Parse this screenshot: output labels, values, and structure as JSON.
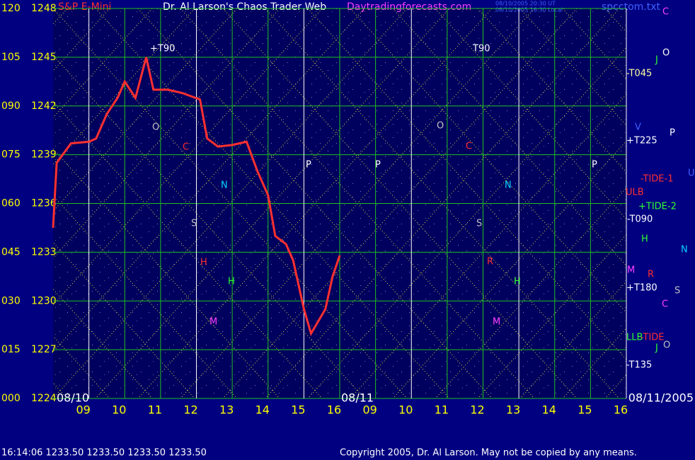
{
  "chart_data": {
    "type": "line",
    "title": "Dr. Al Larson's Chaos Trader Web",
    "subtitle": "Daytradingforecasts.com",
    "stamp": [
      "08/10/2005 20:30 UT",
      "08/10/2005 16:30 Local"
    ],
    "file": "spcctom.txt",
    "xlim": [
      0,
      16
    ],
    "xticks": [
      {
        "value": 1,
        "label": "09"
      },
      {
        "value": 2,
        "label": "10"
      },
      {
        "value": 3,
        "label": "11"
      },
      {
        "value": 4,
        "label": "12"
      },
      {
        "value": 5,
        "label": "13"
      },
      {
        "value": 6,
        "label": "14"
      },
      {
        "value": 7,
        "label": "15"
      },
      {
        "value": 8,
        "label": "16"
      },
      {
        "value": 9,
        "label": "09"
      },
      {
        "value": 10,
        "label": "10"
      },
      {
        "value": 11,
        "label": "11"
      },
      {
        "value": 12,
        "label": "12"
      },
      {
        "value": 13,
        "label": "13"
      },
      {
        "value": 14,
        "label": "14"
      },
      {
        "value": 15,
        "label": "15"
      },
      {
        "value": 16,
        "label": "16"
      }
    ],
    "date_labels": [
      {
        "value": 0,
        "label": "08/10"
      },
      {
        "value": 8,
        "label": "08/11"
      },
      {
        "value": 16,
        "label": "08/11/2005"
      }
    ],
    "ylim": [
      1224,
      1248
    ],
    "yticks": [
      1224,
      1227,
      1230,
      1233,
      1236,
      1239,
      1242,
      1245,
      1248
    ],
    "y2lim": [
      0,
      120
    ],
    "y2ticks": [
      {
        "value": 0,
        "label": "000"
      },
      {
        "value": 15,
        "label": "015"
      },
      {
        "value": 30,
        "label": "030"
      },
      {
        "value": 45,
        "label": "045"
      },
      {
        "value": 60,
        "label": "060"
      },
      {
        "value": 75,
        "label": "075"
      },
      {
        "value": 90,
        "label": "090"
      },
      105,
      120
    ],
    "grid": true,
    "series": [
      {
        "name": "S&P E-Mini",
        "color": "#ff3030",
        "x": [
          0,
          0.1,
          0.5,
          1.0,
          1.2,
          1.5,
          1.8,
          2.0,
          2.3,
          2.6,
          2.8,
          3.2,
          3.6,
          4.1,
          4.3,
          4.6,
          5.0,
          5.4,
          5.7,
          6.0,
          6.2,
          6.5,
          6.7,
          7.0,
          7.2,
          7.6,
          7.8,
          8.0
        ],
        "values": [
          1234.5,
          1238.5,
          1239.7,
          1239.8,
          1240,
          1241.5,
          1242.5,
          1243.5,
          1242.5,
          1245,
          1243,
          1243,
          1242.8,
          1242.4,
          1240,
          1239.5,
          1239.6,
          1239.8,
          1238,
          1236.5,
          1234,
          1233.5,
          1232.5,
          1229.5,
          1228,
          1229.5,
          1231.5,
          1232.8
        ]
      }
    ],
    "annotations": [
      {
        "text": "-T045",
        "color": "#ffffa0"
      },
      {
        "text": "+T225",
        "color": "#ffffff"
      },
      {
        "text": "-TIDE-1",
        "color": "#ff3030"
      },
      {
        "text": "ULB",
        "color": "#ff3030"
      },
      {
        "text": "+TIDE-2",
        "color": "#30ff30"
      },
      {
        "text": "-T090",
        "color": "#ffffff"
      },
      {
        "text": "+T180",
        "color": "#ffffff"
      },
      {
        "text": "LLB",
        "color": "#30ff30"
      },
      {
        "text": "-TIDE",
        "color": "#ff3030"
      },
      {
        "text": "-T135",
        "color": "#ffffff"
      },
      {
        "text": "+T90",
        "color": "#ffffff"
      },
      {
        "text": "T90",
        "color": "#ffffff"
      },
      {
        "text": "O",
        "color": "#c0c0c0"
      },
      {
        "text": "C",
        "color": "#ff3030"
      },
      {
        "text": "N",
        "color": "#00d0ff"
      },
      {
        "text": "S",
        "color": "#c0c0c0"
      },
      {
        "text": "H",
        "color": "#ff3030"
      },
      {
        "text": "H",
        "color": "#30ff30"
      },
      {
        "text": "M",
        "color": "#ff40ff"
      },
      {
        "text": "P",
        "color": "#ffffff"
      },
      {
        "text": "P",
        "color": "#ffffff"
      },
      {
        "text": "O",
        "color": "#c0c0c0"
      },
      {
        "text": "C",
        "color": "#ff3030"
      },
      {
        "text": "N",
        "color": "#00d0ff"
      },
      {
        "text": "S",
        "color": "#c0c0c0"
      },
      {
        "text": "R",
        "color": "#ff3030"
      },
      {
        "text": "H",
        "color": "#30ff30"
      },
      {
        "text": "M",
        "color": "#ff40ff"
      },
      {
        "text": "P",
        "color": "#ffffff"
      },
      {
        "text": "V",
        "color": "#4060ff"
      },
      {
        "text": "P",
        "color": "#ffffff"
      },
      {
        "text": "H",
        "color": "#30ff30"
      },
      {
        "text": "N",
        "color": "#00d0ff"
      },
      {
        "text": "M",
        "color": "#ff40ff"
      },
      {
        "text": "R",
        "color": "#ff3030"
      },
      {
        "text": "S",
        "color": "#c0c0c0"
      },
      {
        "text": "C",
        "color": "#ff40ff"
      },
      {
        "text": "J",
        "color": "#30ff30"
      },
      {
        "text": "O",
        "color": "#c0c0c0"
      },
      {
        "text": "C",
        "color": "#ff40ff"
      },
      {
        "text": "O",
        "color": "#ffffff"
      },
      {
        "text": "J",
        "color": "#30ff30"
      },
      {
        "text": "U",
        "color": "#4060ff"
      }
    ],
    "footer": "16:14:06  1233.50 1233.50 1233.50 1233.50",
    "copyright": "Copyright 2005, Dr. Al Larson. May not be copied by any means."
  }
}
